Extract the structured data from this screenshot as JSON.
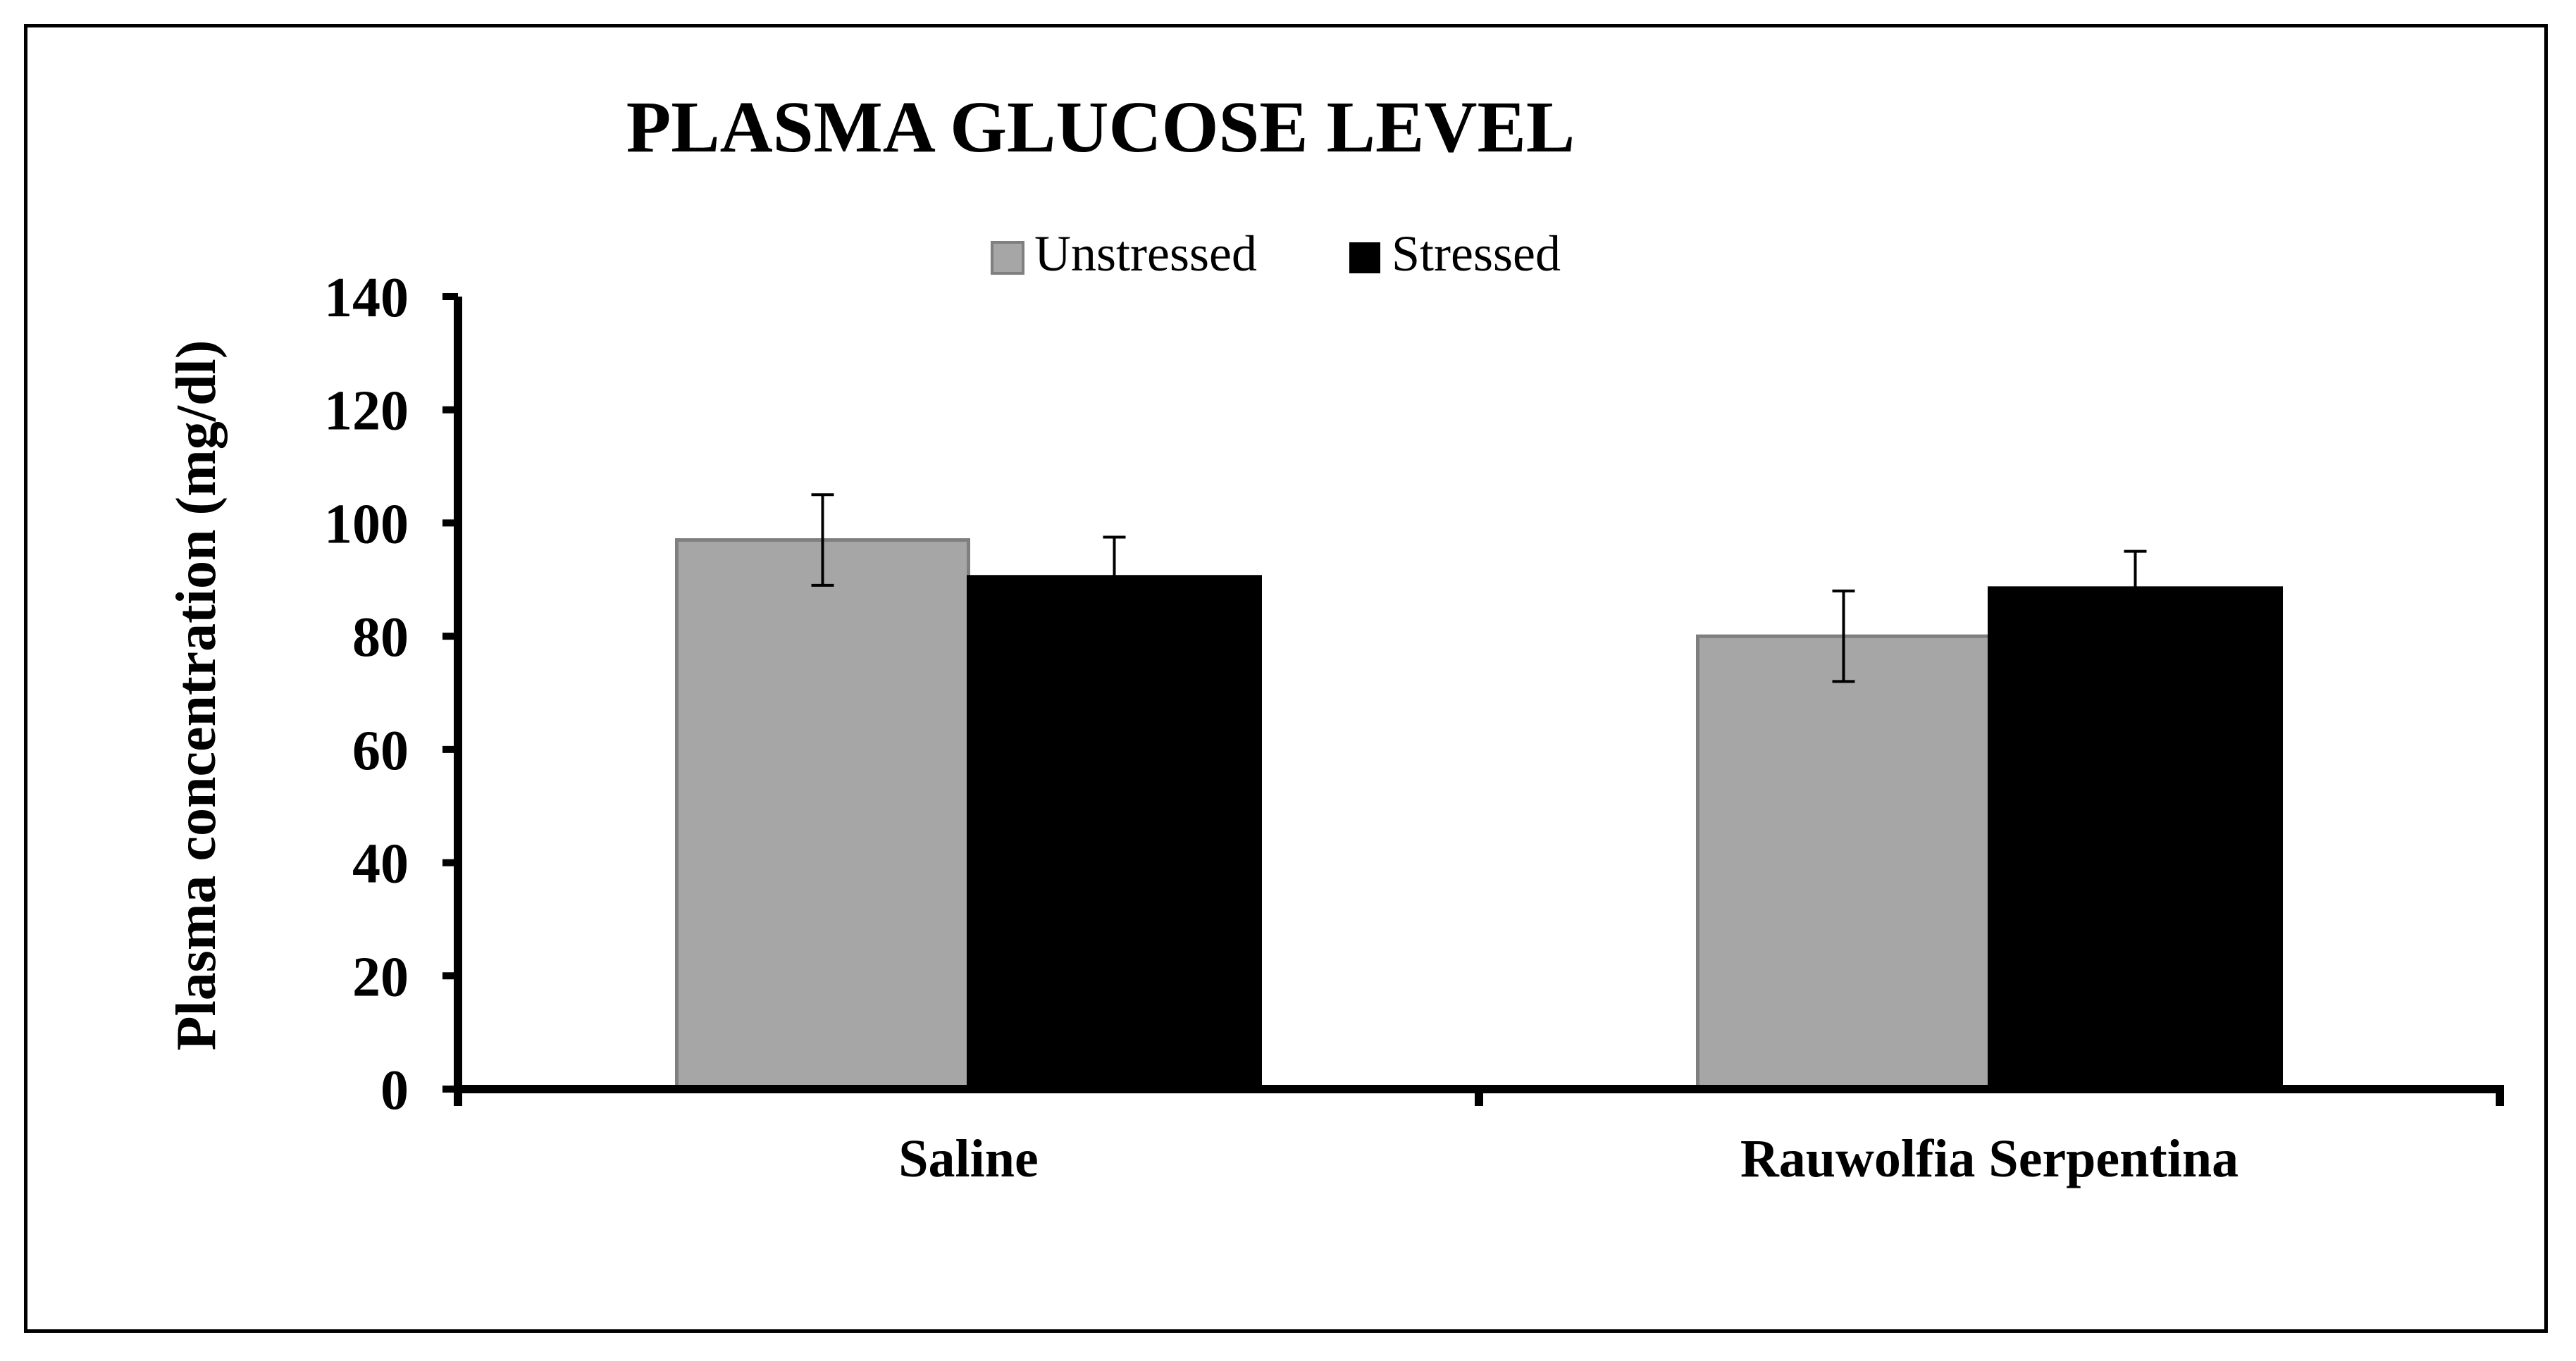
{
  "chart_data": {
    "type": "bar",
    "title": "PLASMA GLUCOSE LEVEL",
    "xlabel": "",
    "ylabel": "Plasma concentration (mg/dl)",
    "categories": [
      "Saline",
      "Rauwolfia Serpentina"
    ],
    "series": [
      {
        "name": "Unstressed",
        "color": "#a6a6a6",
        "stroke": "#7f7f7f",
        "values": [
          97,
          80
        ],
        "errors": [
          8,
          8
        ]
      },
      {
        "name": "Stressed",
        "color": "#000000",
        "stroke": "#000000",
        "values": [
          90.5,
          88.5
        ],
        "errors": [
          7,
          6.5
        ]
      }
    ],
    "ylim": [
      0,
      140
    ],
    "yticks": [
      0,
      20,
      40,
      60,
      80,
      100,
      120,
      140
    ],
    "grid": false,
    "legend": "top-center"
  }
}
